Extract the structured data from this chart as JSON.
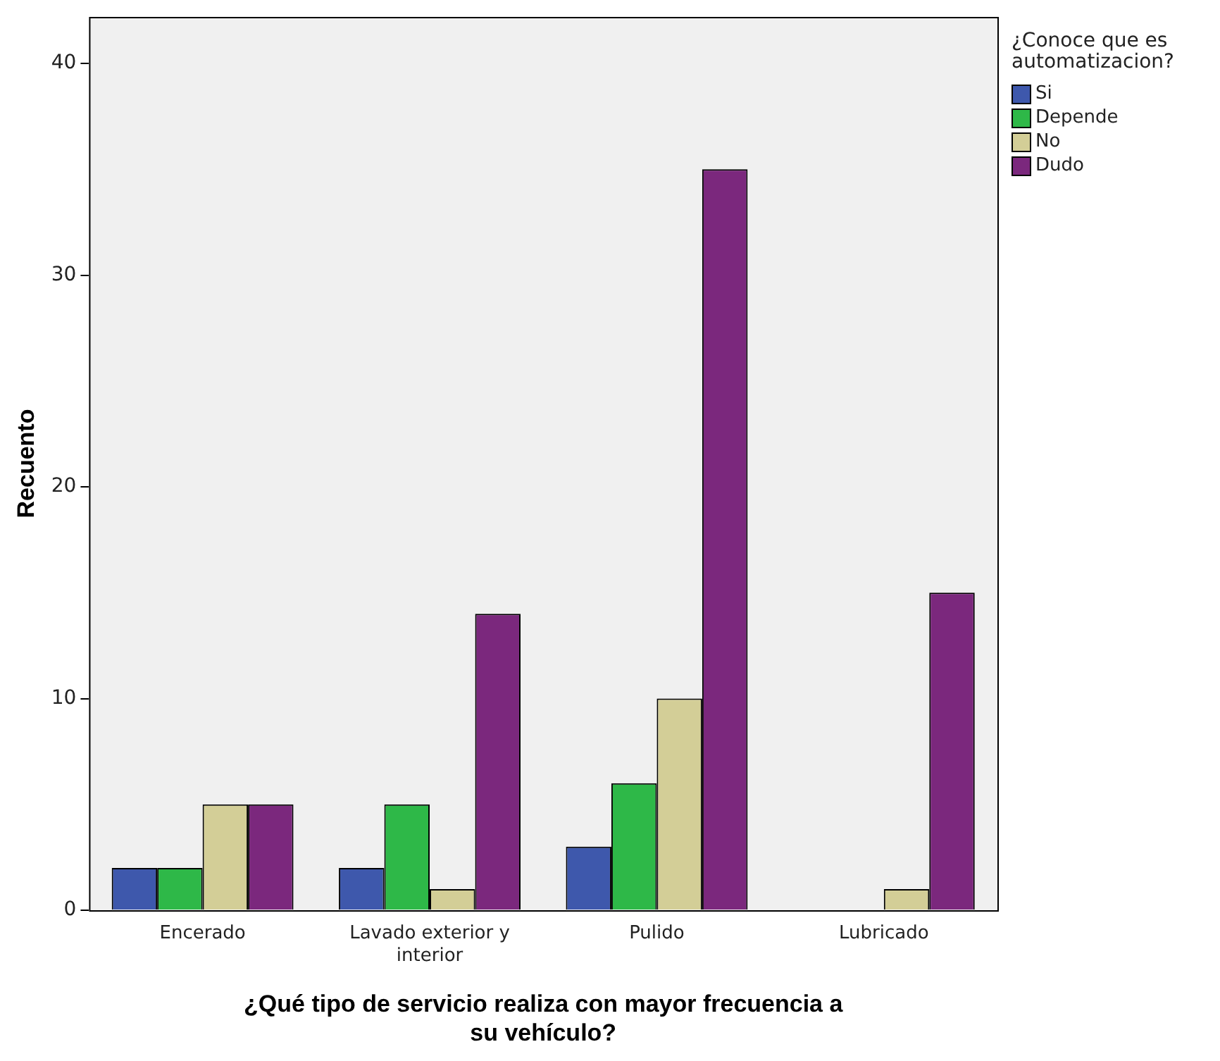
{
  "chart_data": {
    "type": "bar",
    "xlabel": "¿Qué tipo de servicio realiza con mayor frecuencia a su vehículo?",
    "ylabel": "Recuento",
    "legend_title": "¿Conoce que es automatizacion?",
    "legend": "top right",
    "grid": false,
    "categories": [
      "Encerado",
      "Lavado exterior y interior",
      "Pulido",
      "Lubricado"
    ],
    "series": [
      {
        "name": "Si",
        "color": "#3e58ac",
        "values": [
          2,
          2,
          3,
          0
        ]
      },
      {
        "name": "Depende",
        "color": "#2eb848",
        "values": [
          2,
          5,
          6,
          0
        ]
      },
      {
        "name": "No",
        "color": "#d3ce97",
        "values": [
          5,
          1,
          10,
          1
        ]
      },
      {
        "name": "Dudo",
        "color": "#7b287d",
        "values": [
          5,
          14,
          35,
          15
        ]
      }
    ],
    "ylim": [
      0,
      42.2
    ],
    "yticks": [
      0,
      10,
      20,
      30,
      40
    ]
  }
}
